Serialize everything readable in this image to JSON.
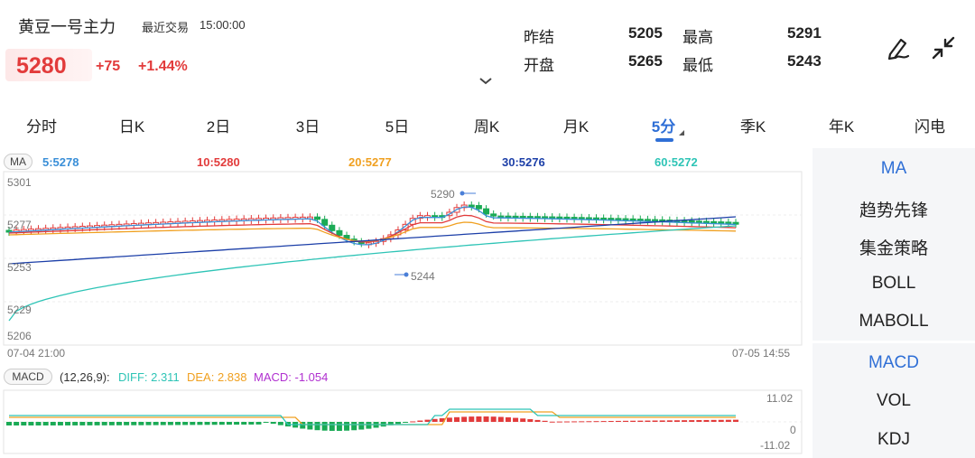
{
  "header": {
    "title": "黄豆一号主力",
    "trade_label": "最近交易",
    "trade_time": "15:00:00",
    "price": "5280",
    "change": "+75",
    "change_pct": "+1.44%"
  },
  "quote": {
    "prev_settle_label": "昨结",
    "prev_settle": "5205",
    "high_label": "最高",
    "high": "5291",
    "open_label": "开盘",
    "open": "5265",
    "low_label": "最低",
    "low": "5243"
  },
  "icons": {
    "draw": "pen-icon",
    "collapse": "collapse-icon",
    "expand": "chevron-down-icon"
  },
  "tabs": [
    "分时",
    "日K",
    "2日",
    "3日",
    "5日",
    "周K",
    "月K",
    "5分",
    "季K",
    "年K",
    "闪电"
  ],
  "active_tab": "5分",
  "colors": {
    "up": "#e23b3b",
    "down": "#1aaa55",
    "accent": "#2f6fd6",
    "ma5": "#3a8fd8",
    "ma10": "#e23b3b",
    "ma20": "#f0a020",
    "ma30": "#1c3fa8",
    "ma60": "#2ec4b6"
  },
  "main_chart": {
    "indicator": "MA",
    "ma5": "5:5278",
    "ma10": "10:5280",
    "ma20": "20:5277",
    "ma30": "30:5276",
    "ma60": "60:5272",
    "y_labels": [
      "5301",
      "5277",
      "5253",
      "5229",
      "5206"
    ],
    "start_time": "07-04 21:00",
    "end_time": "07-05 14:55",
    "max_marker": "5290",
    "min_marker": "5244"
  },
  "macd": {
    "chip": "MACD",
    "params": "(12,26,9):",
    "diff": "DIFF: 2.311",
    "dea": "DEA: 2.838",
    "macd": "MACD: -1.054",
    "y_top": "11.02",
    "y_zero": "0",
    "y_bottom": "-11.02"
  },
  "side_menu": {
    "main": [
      "MA",
      "趋势先锋",
      "集金策略",
      "BOLL",
      "MABOLL"
    ],
    "sub": [
      "MACD",
      "VOL",
      "KDJ"
    ],
    "active_main": "MA",
    "active_sub": "MACD"
  }
}
